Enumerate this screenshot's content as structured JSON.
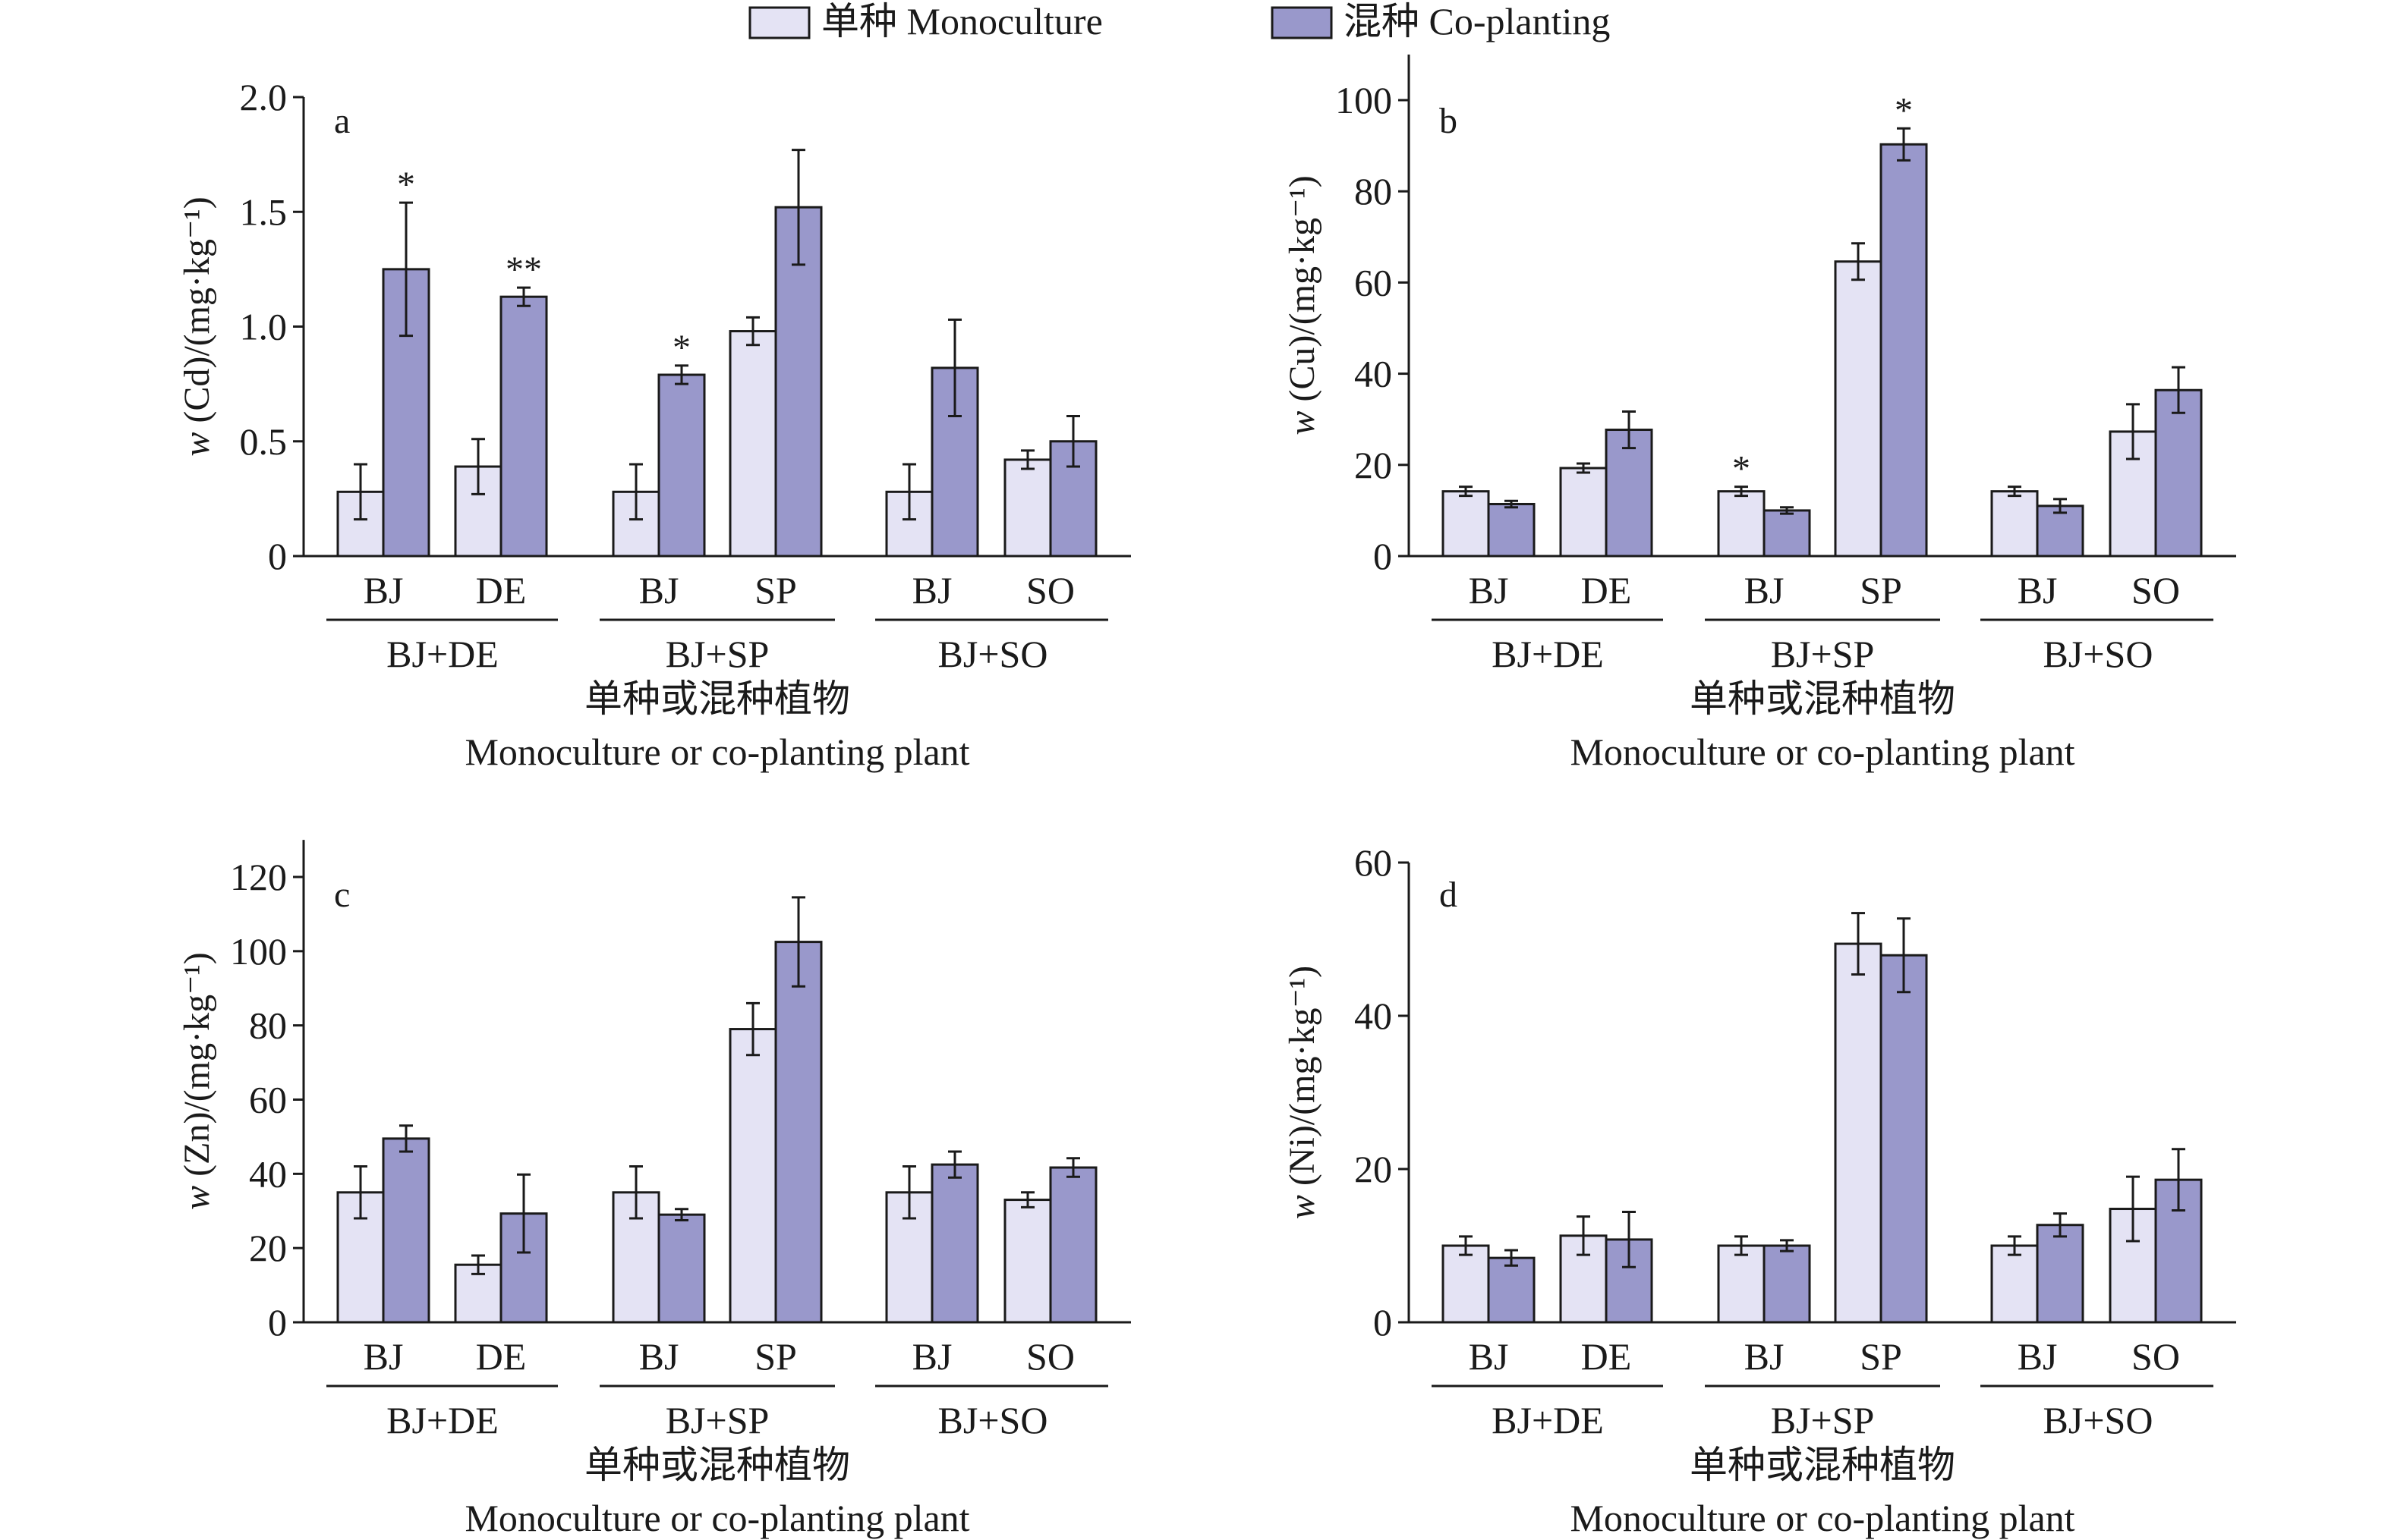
{
  "legend": {
    "items": [
      {
        "label": "单种 Monoculture",
        "color": "#e4e3f4"
      },
      {
        "label": "混种 Co-planting",
        "color": "#9998cb"
      }
    ]
  },
  "chart_data": [
    {
      "type": "bar",
      "panel": "a",
      "ylabel": "w (Cd)/(mg·kg⁻¹)",
      "ylabel_metal": "(Cd)",
      "ylim": [
        0,
        2.0
      ],
      "yticks": [
        "0",
        "0.5",
        "1.0",
        "1.5",
        "2.0"
      ],
      "ytick_values": [
        0,
        0.5,
        1.0,
        1.5,
        2.0
      ],
      "categories": [
        "BJ",
        "DE",
        "BJ",
        "SP",
        "BJ",
        "SO"
      ],
      "groups": [
        "BJ+DE",
        "BJ+SP",
        "BJ+SO"
      ],
      "xlabel_cn": "单种或混种植物",
      "xlabel_en": "Monoculture or co-planting plant",
      "series": [
        {
          "name": "单种 Monoculture",
          "values": [
            0.28,
            0.39,
            0.28,
            0.98,
            0.28,
            0.42
          ],
          "errors": [
            0.12,
            0.12,
            0.12,
            0.06,
            0.12,
            0.04
          ]
        },
        {
          "name": "混种 Co-planting",
          "values": [
            1.25,
            1.13,
            0.79,
            1.52,
            0.82,
            0.5
          ],
          "errors": [
            0.29,
            0.04,
            0.04,
            0.25,
            0.21,
            0.11
          ]
        }
      ],
      "significance": [
        {
          "category_index": 0,
          "series_index": 1,
          "label": "*"
        },
        {
          "category_index": 1,
          "series_index": 1,
          "label": "**"
        },
        {
          "category_index": 2,
          "series_index": 1,
          "label": "*"
        }
      ]
    },
    {
      "type": "bar",
      "panel": "b",
      "ylabel": "w (Cu)/(mg·kg⁻¹)",
      "ylabel_metal": "(Cu)",
      "ylim": [
        0,
        110
      ],
      "yticks": [
        "0",
        "20",
        "40",
        "60",
        "80",
        "100"
      ],
      "ytick_values": [
        0,
        20,
        40,
        60,
        80,
        100
      ],
      "categories": [
        "BJ",
        "DE",
        "BJ",
        "SP",
        "BJ",
        "SO"
      ],
      "groups": [
        "BJ+DE",
        "BJ+SP",
        "BJ+SO"
      ],
      "xlabel_cn": "单种或混种植物",
      "xlabel_en": "Monoculture or co-planting plant",
      "series": [
        {
          "name": "单种 Monoculture",
          "values": [
            14.2,
            19.3,
            14.2,
            64.6,
            14.2,
            27.3
          ],
          "errors": [
            1.0,
            1.0,
            1.0,
            4.0,
            1.0,
            6.0
          ]
        },
        {
          "name": "混种 Co-planting",
          "values": [
            11.4,
            27.7,
            10.0,
            90.3,
            11.0,
            36.4
          ],
          "errors": [
            0.7,
            4.0,
            0.7,
            3.5,
            1.5,
            5.0
          ]
        }
      ],
      "significance": [
        {
          "category_index": 2,
          "series_index": 0,
          "label": "*"
        },
        {
          "category_index": 3,
          "series_index": 1,
          "label": "*"
        }
      ]
    },
    {
      "type": "bar",
      "panel": "c",
      "ylabel": "w (Zn)/(mg·kg⁻¹)",
      "ylabel_metal": "(Zn)",
      "ylim": [
        0,
        130
      ],
      "yticks": [
        "0",
        "20",
        "40",
        "60",
        "80",
        "100",
        "120"
      ],
      "ytick_values": [
        0,
        20,
        40,
        60,
        80,
        100,
        120
      ],
      "categories": [
        "BJ",
        "DE",
        "BJ",
        "SP",
        "BJ",
        "SO"
      ],
      "groups": [
        "BJ+DE",
        "BJ+SP",
        "BJ+SO"
      ],
      "xlabel_cn": "单种或混种植物",
      "xlabel_en": "Monoculture or co-planting plant",
      "series": [
        {
          "name": "单种 Monoculture",
          "values": [
            35.0,
            15.5,
            35.0,
            79.0,
            35.0,
            33.0
          ],
          "errors": [
            7.0,
            2.5,
            7.0,
            7.0,
            7.0,
            2.0
          ]
        },
        {
          "name": "混种 Co-planting",
          "values": [
            49.5,
            29.3,
            29.0,
            102.5,
            42.5,
            41.7
          ],
          "errors": [
            3.5,
            10.5,
            1.5,
            12.0,
            3.5,
            2.5
          ]
        }
      ],
      "significance": []
    },
    {
      "type": "bar",
      "panel": "d",
      "ylabel": "w (Ni)/(mg·kg⁻¹)",
      "ylabel_metal": "(Ni)",
      "ylim": [
        0,
        60
      ],
      "yticks": [
        "0",
        "20",
        "40",
        "60"
      ],
      "ytick_values": [
        0,
        20,
        40,
        60
      ],
      "categories": [
        "BJ",
        "DE",
        "BJ",
        "SP",
        "BJ",
        "SO"
      ],
      "groups": [
        "BJ+DE",
        "BJ+SP",
        "BJ+SO"
      ],
      "xlabel_cn": "单种或混种植物",
      "xlabel_en": "Monoculture or co-planting plant",
      "series": [
        {
          "name": "单种 Monoculture",
          "values": [
            10.0,
            11.3,
            10.0,
            49.4,
            10.0,
            14.8
          ],
          "errors": [
            1.2,
            2.5,
            1.2,
            4.0,
            1.2,
            4.2
          ]
        },
        {
          "name": "混种 Co-planting",
          "values": [
            8.4,
            10.8,
            10.0,
            47.9,
            12.7,
            18.6
          ],
          "errors": [
            1.0,
            3.6,
            0.7,
            4.8,
            1.5,
            4.0
          ]
        }
      ],
      "significance": []
    }
  ]
}
